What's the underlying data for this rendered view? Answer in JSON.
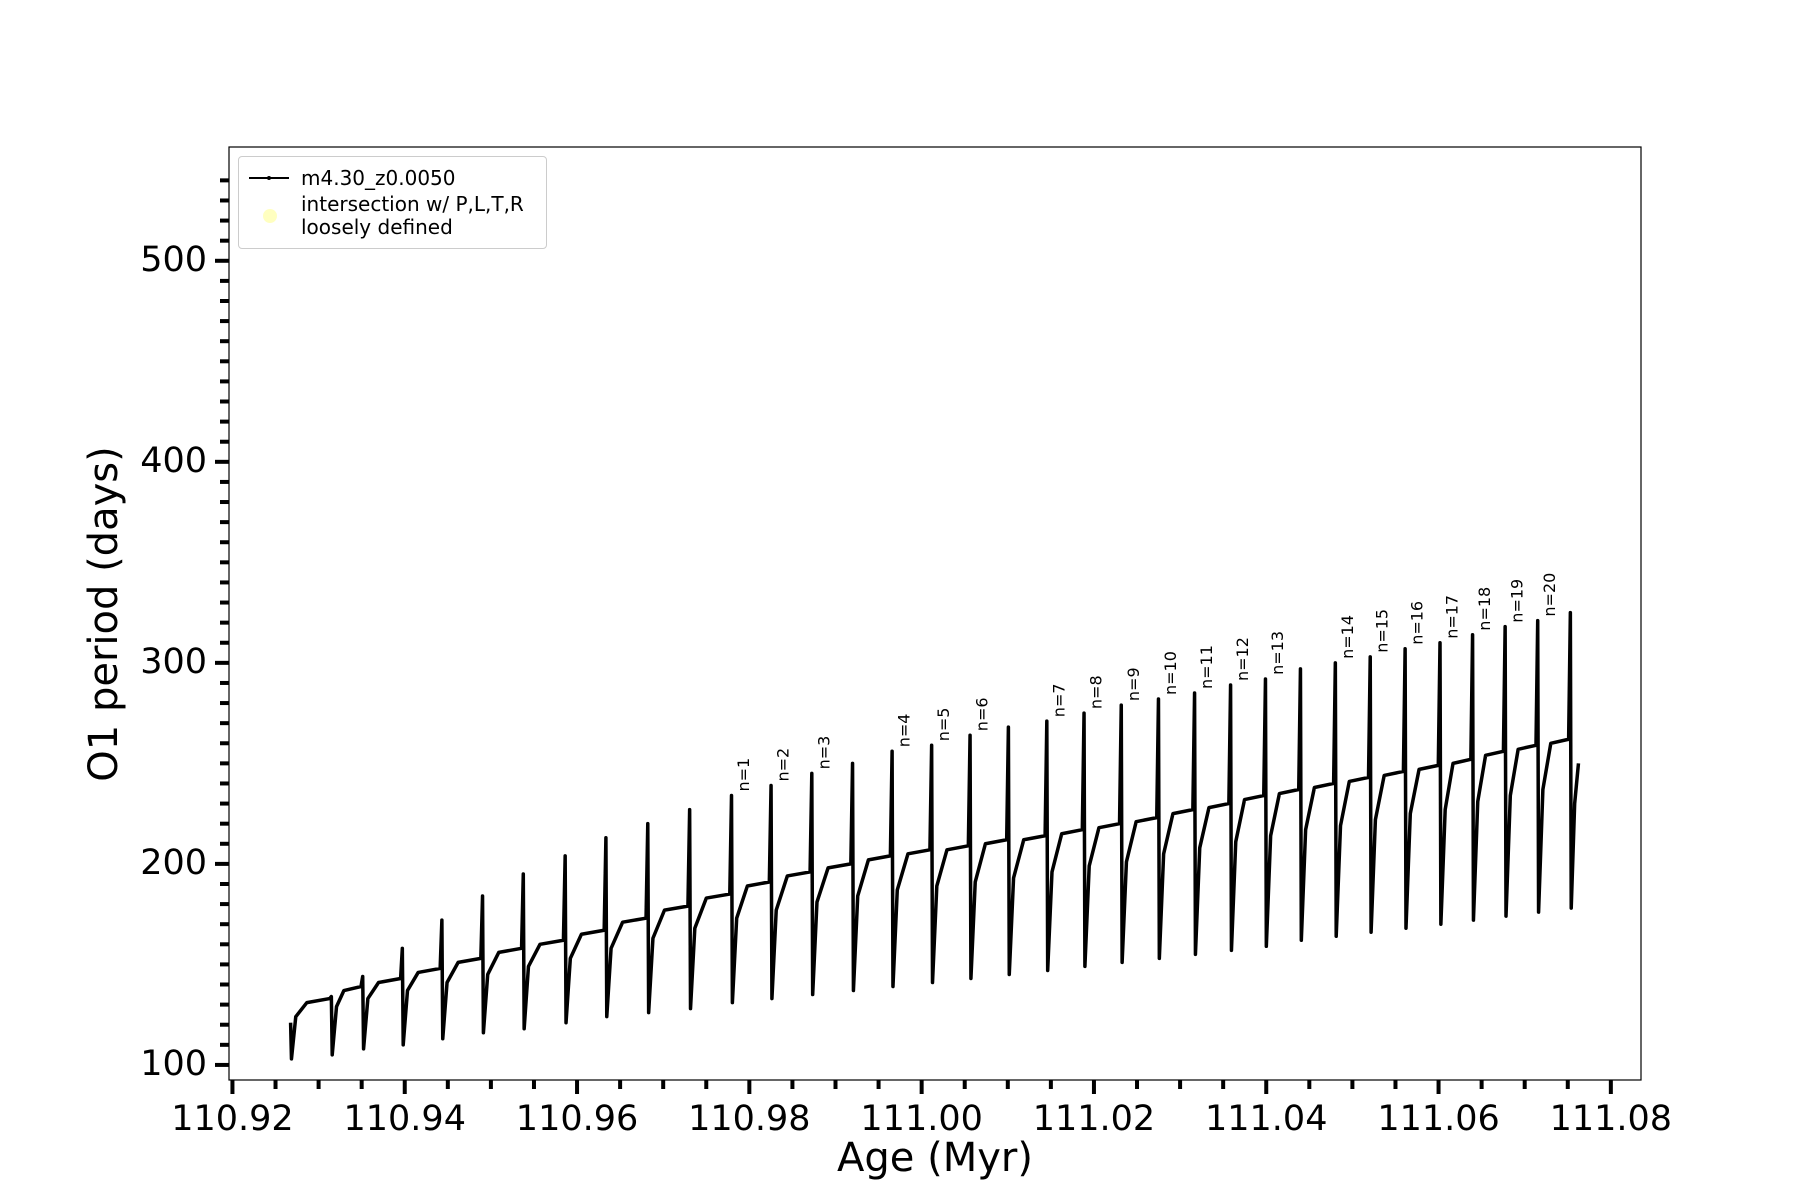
{
  "chart_data": {
    "type": "line",
    "x_label": "Age (Myr)",
    "y_label": "O1 period (days)",
    "xlim": [
      110.9196,
      111.0835
    ],
    "ylim": [
      92.5,
      556.6
    ],
    "xticks": [
      110.92,
      110.94,
      110.96,
      110.98,
      {
        "value": 111,
        "label": "111.00"
      },
      111.02,
      111.04,
      111.06,
      111.08
    ],
    "xminorticks": [
      110.925,
      110.93,
      110.935,
      110.945,
      110.95,
      110.955,
      110.965,
      110.97,
      110.975,
      110.985,
      110.99,
      110.995,
      111.005,
      111.01,
      111.015,
      111.025,
      111.03,
      111.035,
      111.045,
      111.05,
      111.055,
      111.065,
      111.07,
      111.075
    ],
    "yticks": [
      100,
      200,
      300,
      400,
      500
    ],
    "yminorticks": [
      110,
      120,
      130,
      140,
      150,
      160,
      170,
      180,
      190,
      210,
      220,
      230,
      240,
      250,
      260,
      270,
      280,
      290,
      310,
      320,
      330,
      340,
      350,
      360,
      370,
      380,
      390,
      410,
      420,
      430,
      440,
      450,
      460,
      470,
      480,
      490,
      510,
      520,
      530,
      540
    ],
    "legend": "upper left",
    "series": [
      {
        "name": "m4.30_z0.0050",
        "color": "#000000",
        "marker": "dot",
        "x": [
          110.92675,
          110.92685,
          110.92735,
          110.92864,
          110.93128,
          110.93148,
          110.93158,
          110.93208,
          110.93294,
          110.93492,
          110.93512,
          110.93522,
          110.93572,
          110.93696,
          110.93952,
          110.93972,
          110.93982,
          110.94032,
          110.94156,
          110.94411,
          110.94431,
          110.94441,
          110.94491,
          110.9462,
          110.94883,
          110.94903,
          110.94913,
          110.94963,
          110.95092,
          110.95356,
          110.95376,
          110.95386,
          110.95436,
          110.9557,
          110.95842,
          110.95862,
          110.95872,
          110.95922,
          110.96051,
          110.96315,
          110.96335,
          110.96345,
          110.96395,
          110.96529,
          110.96801,
          110.96821,
          110.96831,
          110.96881,
          110.97015,
          110.97287,
          110.97307,
          110.97317,
          110.97367,
          110.97501,
          110.97773,
          110.97793,
          110.97803,
          110.97853,
          110.97977,
          110.98232,
          110.98252,
          110.98262,
          110.98312,
          110.98441,
          110.98705,
          110.98725,
          110.98735,
          110.98785,
          110.98914,
          110.99178,
          110.99198,
          110.99208,
          110.99258,
          110.99382,
          110.99637,
          110.99657,
          110.99667,
          110.99717,
          110.99841,
          111.00096,
          111.00116,
          111.00126,
          111.00176,
          111.00294,
          111.00542,
          111.00562,
          111.00572,
          111.00622,
          111.0074,
          111.00987,
          111.01007,
          111.01017,
          111.01067,
          111.01185,
          111.01433,
          111.01453,
          111.01463,
          111.01513,
          111.01626,
          111.01865,
          111.01885,
          111.01895,
          111.01945,
          111.02058,
          111.02297,
          111.02317,
          111.02327,
          111.02377,
          111.0249,
          111.02729,
          111.02749,
          111.02759,
          111.02809,
          111.02917,
          111.03148,
          111.03168,
          111.03178,
          111.03228,
          111.03335,
          111.03566,
          111.03586,
          111.03596,
          111.03646,
          111.03748,
          111.03971,
          111.03991,
          111.04001,
          111.04051,
          111.04153,
          111.04377,
          111.04397,
          111.04407,
          111.04457,
          111.04559,
          111.04782,
          111.04802,
          111.04812,
          111.04862,
          111.04964,
          111.05187,
          111.05207,
          111.05217,
          111.05267,
          111.05369,
          111.05592,
          111.05612,
          111.05622,
          111.05672,
          111.05774,
          111.05997,
          111.06017,
          111.06027,
          111.06077,
          111.06168,
          111.06375,
          111.06395,
          111.06405,
          111.06455,
          111.06546,
          111.06753,
          111.06773,
          111.06783,
          111.06833,
          111.06924,
          111.07131,
          111.07151,
          111.07161,
          111.07211,
          111.07303,
          111.0751,
          111.0753,
          111.0754,
          111.0758,
          111.07624
        ],
        "values": [
          121,
          103,
          124,
          131,
          133,
          134,
          105,
          129,
          137,
          139,
          144,
          108,
          133,
          141,
          143,
          158,
          110,
          137,
          146,
          148,
          172,
          113,
          141,
          151,
          153,
          184,
          116,
          145,
          156,
          158,
          195,
          118,
          149,
          160,
          162,
          204,
          121,
          153,
          165,
          167,
          213,
          124,
          158,
          171,
          173,
          220,
          126,
          163,
          177,
          179,
          227,
          128,
          168,
          183,
          185,
          234,
          131,
          173,
          189,
          191,
          239,
          133,
          177,
          194,
          196,
          245,
          135,
          181,
          198,
          200,
          250,
          137,
          184,
          202,
          204,
          256,
          139,
          187,
          205,
          207,
          259,
          141,
          189,
          207,
          209,
          264,
          143,
          191,
          210,
          212,
          268,
          145,
          193,
          212,
          214,
          271,
          147,
          196,
          215,
          217,
          275,
          149,
          199,
          218,
          220,
          279,
          151,
          201,
          221,
          223,
          282,
          153,
          205,
          225,
          227,
          285,
          155,
          208,
          228,
          230,
          289,
          157,
          211,
          232,
          234,
          292,
          159,
          214,
          235,
          237,
          297,
          162,
          217,
          238,
          240,
          300,
          164,
          219,
          241,
          243,
          303,
          166,
          222,
          244,
          246,
          307,
          168,
          225,
          247,
          249,
          310,
          170,
          227,
          250,
          252,
          314,
          172,
          231,
          254,
          256,
          318,
          174,
          234,
          257,
          259,
          321,
          176,
          237,
          260,
          262,
          325,
          178,
          230,
          250
        ]
      },
      {
        "name": "intersection w/ P,L,T,R\nloosely defined",
        "color": "#ffffc0",
        "marker": "circle",
        "values": []
      }
    ],
    "annotations": [
      {
        "text": "n=1",
        "x": 110.97793,
        "y": 234
      },
      {
        "text": "n=2",
        "x": 110.98252,
        "y": 239
      },
      {
        "text": "n=3",
        "x": 110.98725,
        "y": 245
      },
      {
        "text": "n=4",
        "x": 110.99657,
        "y": 256
      },
      {
        "text": "n=5",
        "x": 111.00116,
        "y": 259
      },
      {
        "text": "n=6",
        "x": 111.00562,
        "y": 264
      },
      {
        "text": "n=7",
        "x": 111.01453,
        "y": 271
      },
      {
        "text": "n=8",
        "x": 111.01885,
        "y": 275
      },
      {
        "text": "n=9",
        "x": 111.02317,
        "y": 279
      },
      {
        "text": "n=10",
        "x": 111.02749,
        "y": 282
      },
      {
        "text": "n=11",
        "x": 111.03168,
        "y": 285
      },
      {
        "text": "n=12",
        "x": 111.03586,
        "y": 289
      },
      {
        "text": "n=13",
        "x": 111.03991,
        "y": 292
      },
      {
        "text": "n=14",
        "x": 111.04802,
        "y": 300
      },
      {
        "text": "n=15",
        "x": 111.05207,
        "y": 303
      },
      {
        "text": "n=16",
        "x": 111.05612,
        "y": 307
      },
      {
        "text": "n=17",
        "x": 111.06017,
        "y": 310
      },
      {
        "text": "n=18",
        "x": 111.06395,
        "y": 314
      },
      {
        "text": "n=19",
        "x": 111.06773,
        "y": 318
      },
      {
        "text": "n=20",
        "x": 111.07151,
        "y": 321
      }
    ]
  }
}
